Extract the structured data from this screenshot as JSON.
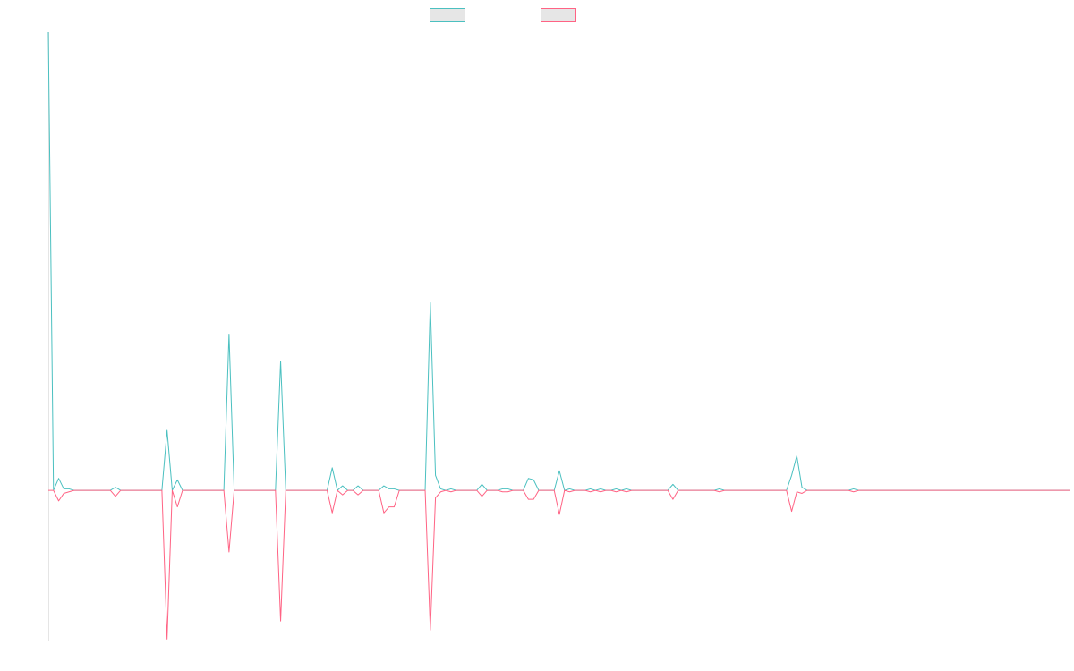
{
  "colors": {
    "series_a": "#4bc0c0",
    "series_b": "#ff6384",
    "legend_fill": "#e6e6e6",
    "axis": "#e5e5e5"
  },
  "legend": {
    "placement": "top-center",
    "items": [
      {
        "label": "",
        "color_key": "series_a"
      },
      {
        "label": "",
        "color_key": "series_b"
      }
    ]
  },
  "chart_data": {
    "type": "line",
    "title": "",
    "xlabel": "",
    "ylabel": "",
    "grid": false,
    "ylim": [
      -100,
      305
    ],
    "x_count": 199,
    "series": [
      {
        "color_key": "series_a",
        "sparse_values": [
          [
            0,
            305
          ],
          [
            2,
            8
          ],
          [
            3,
            1
          ],
          [
            4,
            1
          ],
          [
            13,
            2
          ],
          [
            23,
            40
          ],
          [
            25,
            7
          ],
          [
            35,
            104
          ],
          [
            45,
            86
          ],
          [
            55,
            15
          ],
          [
            57,
            3
          ],
          [
            60,
            3
          ],
          [
            65,
            3
          ],
          [
            66,
            1
          ],
          [
            67,
            1
          ],
          [
            74,
            125
          ],
          [
            75,
            10
          ],
          [
            76,
            1
          ],
          [
            78,
            1
          ],
          [
            84,
            4
          ],
          [
            88,
            1
          ],
          [
            89,
            1
          ],
          [
            93,
            8
          ],
          [
            94,
            7
          ],
          [
            99,
            13
          ],
          [
            101,
            1
          ],
          [
            105,
            1
          ],
          [
            107,
            1
          ],
          [
            110,
            1
          ],
          [
            112,
            1
          ],
          [
            121,
            4
          ],
          [
            130,
            1
          ],
          [
            144,
            10
          ],
          [
            145,
            23
          ],
          [
            146,
            2
          ],
          [
            156,
            1
          ]
        ]
      },
      {
        "color_key": "series_b",
        "sparse_values": [
          [
            0,
            0
          ],
          [
            2,
            -7
          ],
          [
            3,
            -2
          ],
          [
            4,
            -1
          ],
          [
            13,
            -4
          ],
          [
            23,
            -99
          ],
          [
            25,
            -11
          ],
          [
            35,
            -41
          ],
          [
            45,
            -87
          ],
          [
            55,
            -15
          ],
          [
            57,
            -3
          ],
          [
            60,
            -3
          ],
          [
            65,
            -15
          ],
          [
            66,
            -11
          ],
          [
            67,
            -11
          ],
          [
            74,
            -93
          ],
          [
            75,
            -5
          ],
          [
            76,
            -1
          ],
          [
            78,
            -1
          ],
          [
            84,
            -4
          ],
          [
            88,
            -1
          ],
          [
            89,
            -1
          ],
          [
            93,
            -6
          ],
          [
            94,
            -6
          ],
          [
            99,
            -16
          ],
          [
            101,
            -1
          ],
          [
            105,
            -1
          ],
          [
            107,
            -1
          ],
          [
            110,
            -1
          ],
          [
            112,
            -1
          ],
          [
            121,
            -6
          ],
          [
            130,
            -1
          ],
          [
            144,
            -14
          ],
          [
            145,
            -1
          ],
          [
            146,
            -2
          ],
          [
            156,
            -1
          ]
        ]
      }
    ]
  }
}
